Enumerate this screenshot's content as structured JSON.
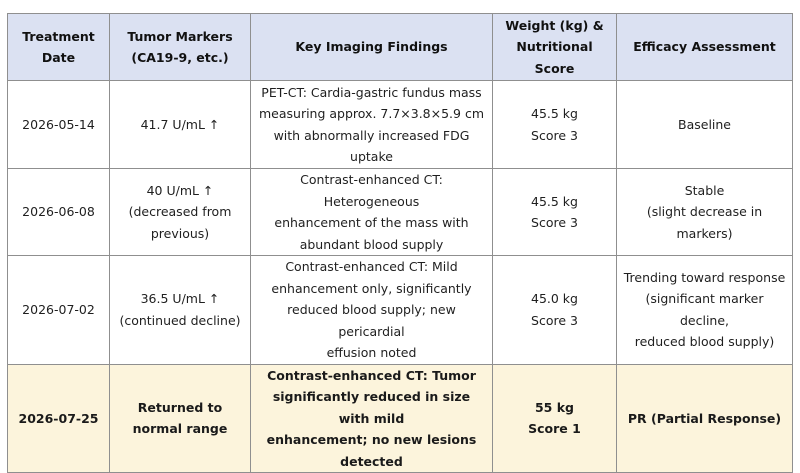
{
  "table": {
    "headers": [
      [
        "Treatment",
        "Date"
      ],
      [
        "Tumor Markers",
        "(CA19-9, etc.)"
      ],
      [
        "Key Imaging Findings"
      ],
      [
        "Weight (kg) &",
        "Nutritional Score"
      ],
      [
        "Efficacy Assessment"
      ]
    ],
    "rows": [
      {
        "date": "2026-05-14",
        "markers": [
          "41.7 U/mL ↑"
        ],
        "imaging": [
          "PET-CT: Cardia-gastric fundus mass",
          "measuring approx. 7.7×3.8×5.9 cm",
          "with abnormally increased FDG uptake"
        ],
        "weight": [
          "45.5 kg",
          "Score 3"
        ],
        "efficacy": [
          "Baseline"
        ]
      },
      {
        "date": "2026-06-08",
        "markers": [
          "40 U/mL ↑",
          "(decreased from",
          "previous)"
        ],
        "imaging": [
          "Contrast-enhanced CT: Heterogeneous",
          "enhancement of the mass with",
          "abundant blood supply"
        ],
        "weight": [
          "45.5 kg",
          "Score 3"
        ],
        "efficacy": [
          "Stable",
          "(slight decrease in markers)"
        ]
      },
      {
        "date": "2026-07-02",
        "markers": [
          "36.5 U/mL ↑",
          "(continued decline)"
        ],
        "imaging": [
          "Contrast-enhanced CT: Mild",
          "enhancement only, significantly",
          "reduced blood supply; new pericardial",
          "effusion noted"
        ],
        "weight": [
          "45.0 kg",
          "Score 3"
        ],
        "efficacy": [
          "Trending toward response",
          "(significant marker decline,",
          "reduced blood supply)"
        ]
      },
      {
        "date": "2026-07-25",
        "markers": [
          "Returned to",
          "normal range"
        ],
        "imaging": [
          "Contrast-enhanced CT: Tumor",
          "significantly reduced in size with mild",
          "enhancement; no new lesions detected"
        ],
        "weight": [
          "55 kg",
          "Score 1"
        ],
        "efficacy": [
          "PR (Partial Response)"
        ]
      }
    ]
  },
  "colors": {
    "header_bg": "#dbe1f2",
    "highlight_bg": "#fcf4dc",
    "border": "#8f8f8f"
  }
}
